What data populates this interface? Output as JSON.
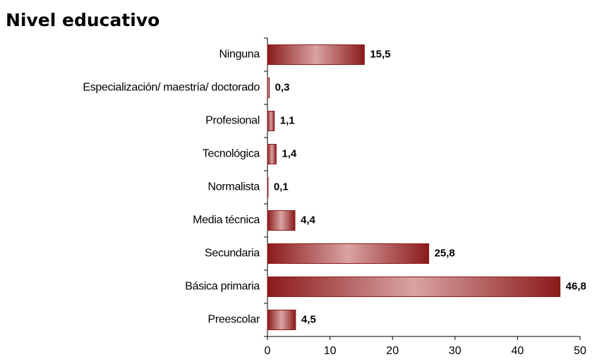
{
  "chart_data": {
    "type": "barh",
    "title": "Nivel educativo",
    "categories": [
      "Ninguna",
      "Especialización/ maestría/ doctorado",
      "Profesional",
      "Tecnológica",
      "Normalista",
      "Media técnica",
      "Secundaria",
      "Básica primaria",
      "Preescolar"
    ],
    "values": [
      15.5,
      0.3,
      1.1,
      1.4,
      0.1,
      4.4,
      25.8,
      46.8,
      4.5
    ],
    "value_labels": [
      "15,5",
      "0,3",
      "1,1",
      "1,4",
      "0,1",
      "4,4",
      "25,8",
      "46,8",
      "4,5"
    ],
    "color": "#8b1a1a",
    "xlim": [
      0,
      50
    ],
    "xticks": [
      0,
      10,
      20,
      30,
      40,
      50
    ]
  }
}
